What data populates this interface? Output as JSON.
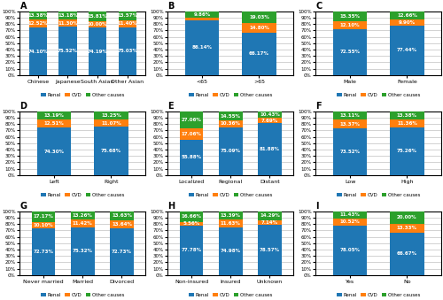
{
  "chart_data": [
    {
      "type": "bar",
      "title": "A",
      "stacked": true,
      "data_labels": true,
      "grid": true,
      "legend": "lower center",
      "categories": [
        "Chinese",
        "Japanese",
        "South Asian",
        "Other Asian"
      ],
      "series": [
        {
          "name": "Renal",
          "values": [
            74.1,
            75.52,
            74.19,
            75.03
          ],
          "value_labels": [
            "74.10%",
            "75.52%",
            "74.19%",
            "75.03%"
          ]
        },
        {
          "name": "CVD",
          "values": [
            12.52,
            11.3,
            10.0,
            11.4
          ],
          "value_labels": [
            "12.52%",
            "11.30%",
            "10.00%",
            "11.40%"
          ]
        },
        {
          "name": "Other causes",
          "values": [
            13.38,
            13.18,
            15.81,
            13.57
          ],
          "value_labels": [
            "13.38%",
            "13.18%",
            "15.81%",
            "13.57%"
          ]
        }
      ],
      "ylim": [
        0,
        100
      ],
      "yticks": [
        {
          "value": 0,
          "label": "0%"
        },
        {
          "value": 10,
          "label": "10%"
        },
        {
          "value": 20,
          "label": "20%"
        },
        {
          "value": 30,
          "label": "30%"
        },
        {
          "value": 40,
          "label": "40%"
        },
        {
          "value": 50,
          "label": "50%"
        },
        {
          "value": 60,
          "label": "60%"
        },
        {
          "value": 70,
          "label": "70%"
        },
        {
          "value": 80,
          "label": "80%"
        },
        {
          "value": 90,
          "label": "90%"
        },
        {
          "value": 100,
          "label": "100%"
        }
      ]
    },
    {
      "type": "bar",
      "title": "B",
      "stacked": true,
      "data_labels": true,
      "grid": true,
      "legend": "lower center",
      "categories": [
        "<65",
        ">65"
      ],
      "series": [
        {
          "name": "Renal",
          "values": [
            86.14,
            66.17
          ],
          "value_labels": [
            "86.14%",
            "66.17%"
          ]
        },
        {
          "name": "CVD",
          "values": [
            4.0,
            14.8
          ],
          "value_labels": [
            null,
            "14.80%"
          ]
        },
        {
          "name": "Other causes",
          "values": [
            9.86,
            19.03
          ],
          "value_labels": [
            "9.86%",
            "19.03%"
          ]
        }
      ],
      "ylim": [
        0,
        100
      ],
      "yticks": [
        {
          "value": 0,
          "label": "0%"
        },
        {
          "value": 10,
          "label": "10%"
        },
        {
          "value": 20,
          "label": "20%"
        },
        {
          "value": 30,
          "label": "30%"
        },
        {
          "value": 40,
          "label": "40%"
        },
        {
          "value": 50,
          "label": "50%"
        },
        {
          "value": 60,
          "label": "60%"
        },
        {
          "value": 70,
          "label": "70%"
        },
        {
          "value": 80,
          "label": "80%"
        },
        {
          "value": 90,
          "label": "90%"
        },
        {
          "value": 100,
          "label": "100%"
        }
      ]
    },
    {
      "type": "bar",
      "title": "C",
      "stacked": true,
      "data_labels": true,
      "grid": true,
      "legend": "lower center",
      "categories": [
        "Male",
        "Female"
      ],
      "series": [
        {
          "name": "Renal",
          "values": [
            72.55,
            77.44
          ],
          "value_labels": [
            "72.55%",
            "77.44%"
          ]
        },
        {
          "name": "CVD",
          "values": [
            12.1,
            9.9
          ],
          "value_labels": [
            "12.10%",
            "9.90%"
          ]
        },
        {
          "name": "Other causes",
          "values": [
            15.35,
            12.66
          ],
          "value_labels": [
            "15.35%",
            "12.66%"
          ]
        }
      ],
      "ylim": [
        0,
        100
      ],
      "yticks": [
        {
          "value": 0,
          "label": "0%"
        },
        {
          "value": 10,
          "label": "10%"
        },
        {
          "value": 20,
          "label": "20%"
        },
        {
          "value": 30,
          "label": "30%"
        },
        {
          "value": 40,
          "label": "40%"
        },
        {
          "value": 50,
          "label": "50%"
        },
        {
          "value": 60,
          "label": "60%"
        },
        {
          "value": 70,
          "label": "70%"
        },
        {
          "value": 80,
          "label": "80%"
        },
        {
          "value": 90,
          "label": "90%"
        },
        {
          "value": 100,
          "label": "100%"
        }
      ]
    },
    {
      "type": "bar",
      "title": "D",
      "stacked": true,
      "data_labels": true,
      "grid": true,
      "legend": "lower center",
      "categories": [
        "Left",
        "Right"
      ],
      "series": [
        {
          "name": "Renal",
          "values": [
            74.3,
            75.68
          ],
          "value_labels": [
            "74.30%",
            "75.68%"
          ]
        },
        {
          "name": "CVD",
          "values": [
            12.51,
            11.07
          ],
          "value_labels": [
            "12.51%",
            "11.07%"
          ]
        },
        {
          "name": "Other causes",
          "values": [
            13.19,
            13.25
          ],
          "value_labels": [
            "13.19%",
            "13.25%"
          ]
        }
      ],
      "ylim": [
        0,
        100
      ],
      "yticks": [
        {
          "value": 0,
          "label": "0%"
        },
        {
          "value": 10,
          "label": "10%"
        },
        {
          "value": 20,
          "label": "20%"
        },
        {
          "value": 30,
          "label": "30%"
        },
        {
          "value": 40,
          "label": "40%"
        },
        {
          "value": 50,
          "label": "50%"
        },
        {
          "value": 60,
          "label": "60%"
        },
        {
          "value": 70,
          "label": "70%"
        },
        {
          "value": 80,
          "label": "80%"
        },
        {
          "value": 90,
          "label": "90%"
        },
        {
          "value": 100,
          "label": "100%"
        }
      ]
    },
    {
      "type": "bar",
      "title": "E",
      "stacked": true,
      "data_labels": true,
      "grid": true,
      "legend": "lower center",
      "categories": [
        "Localized",
        "Regional",
        "Distant"
      ],
      "series": [
        {
          "name": "Renal",
          "values": [
            55.88,
            75.09,
            81.88
          ],
          "value_labels": [
            "55.88%",
            "75.09%",
            "81.88%"
          ]
        },
        {
          "name": "CVD",
          "values": [
            17.06,
            10.36,
            7.69
          ],
          "value_labels": [
            "17.06%",
            "10.36%",
            "7.69%"
          ]
        },
        {
          "name": "Other causes",
          "values": [
            27.06,
            14.55,
            10.43
          ],
          "value_labels": [
            "27.06%",
            "14.55%",
            "10.43%"
          ]
        }
      ],
      "ylim": [
        0,
        100
      ],
      "yticks": [
        {
          "value": 0,
          "label": "0%"
        },
        {
          "value": 10,
          "label": "10%"
        },
        {
          "value": 20,
          "label": "20%"
        },
        {
          "value": 30,
          "label": "30%"
        },
        {
          "value": 40,
          "label": "40%"
        },
        {
          "value": 50,
          "label": "50%"
        },
        {
          "value": 60,
          "label": "60%"
        },
        {
          "value": 70,
          "label": "70%"
        },
        {
          "value": 80,
          "label": "80%"
        },
        {
          "value": 90,
          "label": "90%"
        },
        {
          "value": 100,
          "label": "100%"
        }
      ]
    },
    {
      "type": "bar",
      "title": "F",
      "stacked": true,
      "data_labels": true,
      "grid": true,
      "legend": "lower center",
      "categories": [
        "Low",
        "High"
      ],
      "series": [
        {
          "name": "Renal",
          "values": [
            73.52,
            75.26
          ],
          "value_labels": [
            "73.52%",
            "75.26%"
          ]
        },
        {
          "name": "CVD",
          "values": [
            13.37,
            11.36
          ],
          "value_labels": [
            "13.37%",
            "11.36%"
          ]
        },
        {
          "name": "Other causes",
          "values": [
            13.11,
            13.38
          ],
          "value_labels": [
            "13.11%",
            "13.38%"
          ]
        }
      ],
      "ylim": [
        0,
        100
      ],
      "yticks": [
        {
          "value": 0,
          "label": "0%"
        },
        {
          "value": 10,
          "label": "10%"
        },
        {
          "value": 20,
          "label": "20%"
        },
        {
          "value": 30,
          "label": "30%"
        },
        {
          "value": 40,
          "label": "40%"
        },
        {
          "value": 50,
          "label": "50%"
        },
        {
          "value": 60,
          "label": "60%"
        },
        {
          "value": 70,
          "label": "70%"
        },
        {
          "value": 80,
          "label": "80%"
        },
        {
          "value": 90,
          "label": "90%"
        },
        {
          "value": 100,
          "label": "100%"
        }
      ]
    },
    {
      "type": "bar",
      "title": "G",
      "stacked": true,
      "data_labels": true,
      "grid": true,
      "legend": "lower center",
      "categories": [
        "Never married",
        "Married",
        "Divorced"
      ],
      "series": [
        {
          "name": "Renal",
          "values": [
            72.73,
            75.32,
            72.73
          ],
          "value_labels": [
            "72.73%",
            "75.32%",
            "72.73%"
          ]
        },
        {
          "name": "CVD",
          "values": [
            10.1,
            11.42,
            13.64
          ],
          "value_labels": [
            "10.10%",
            "11.42%",
            "13.64%"
          ]
        },
        {
          "name": "Other causes",
          "values": [
            17.17,
            13.26,
            13.63
          ],
          "value_labels": [
            "17.17%",
            "13.26%",
            "13.63%"
          ]
        }
      ],
      "ylim": [
        0,
        100
      ],
      "yticks": [
        {
          "value": 0,
          "label": "0%"
        },
        {
          "value": 10,
          "label": "10%"
        },
        {
          "value": 20,
          "label": "20%"
        },
        {
          "value": 30,
          "label": "30%"
        },
        {
          "value": 40,
          "label": "40%"
        },
        {
          "value": 50,
          "label": "50%"
        },
        {
          "value": 60,
          "label": "60%"
        },
        {
          "value": 70,
          "label": "70%"
        },
        {
          "value": 80,
          "label": "80%"
        },
        {
          "value": 90,
          "label": "90%"
        },
        {
          "value": 100,
          "label": "100%"
        }
      ]
    },
    {
      "type": "bar",
      "title": "H",
      "stacked": true,
      "data_labels": true,
      "grid": true,
      "legend": "lower center",
      "categories": [
        "Non-insured",
        "Insured",
        "Unknown"
      ],
      "series": [
        {
          "name": "Renal",
          "values": [
            77.78,
            74.98,
            78.57
          ],
          "value_labels": [
            "77.78%",
            "74.98%",
            "78.57%"
          ]
        },
        {
          "name": "CVD",
          "values": [
            5.56,
            11.63,
            7.14
          ],
          "value_labels": [
            "5.56%",
            "11.63%",
            "7.14%"
          ]
        },
        {
          "name": "Other causes",
          "values": [
            16.66,
            13.39,
            14.29
          ],
          "value_labels": [
            "16.66%",
            "13.39%",
            "14.29%"
          ]
        }
      ],
      "ylim": [
        0,
        100
      ],
      "yticks": [
        {
          "value": 0,
          "label": "0%"
        },
        {
          "value": 10,
          "label": "10%"
        },
        {
          "value": 20,
          "label": "20%"
        },
        {
          "value": 30,
          "label": "30%"
        },
        {
          "value": 40,
          "label": "40%"
        },
        {
          "value": 50,
          "label": "50%"
        },
        {
          "value": 60,
          "label": "60%"
        },
        {
          "value": 70,
          "label": "70%"
        },
        {
          "value": 80,
          "label": "80%"
        },
        {
          "value": 90,
          "label": "90%"
        },
        {
          "value": 100,
          "label": "100%"
        }
      ]
    },
    {
      "type": "bar",
      "title": "I",
      "stacked": true,
      "data_labels": true,
      "grid": true,
      "legend": "lower center",
      "categories": [
        "Yes",
        "No"
      ],
      "series": [
        {
          "name": "Renal",
          "values": [
            78.05,
            66.67
          ],
          "value_labels": [
            "78.05%",
            "66.67%"
          ]
        },
        {
          "name": "CVD",
          "values": [
            10.52,
            13.33
          ],
          "value_labels": [
            "10.52%",
            "13.33%"
          ]
        },
        {
          "name": "Other causes",
          "values": [
            11.43,
            20.0
          ],
          "value_labels": [
            "11.43%",
            "20.00%"
          ]
        }
      ],
      "ylim": [
        0,
        100
      ],
      "yticks": [
        {
          "value": 0,
          "label": "0%"
        },
        {
          "value": 10,
          "label": "10%"
        },
        {
          "value": 20,
          "label": "20%"
        },
        {
          "value": 30,
          "label": "30%"
        },
        {
          "value": 40,
          "label": "40%"
        },
        {
          "value": 50,
          "label": "50%"
        },
        {
          "value": 60,
          "label": "60%"
        },
        {
          "value": 70,
          "label": "70%"
        },
        {
          "value": 80,
          "label": "80%"
        },
        {
          "value": 90,
          "label": "90%"
        },
        {
          "value": 100,
          "label": "100%"
        }
      ]
    }
  ]
}
